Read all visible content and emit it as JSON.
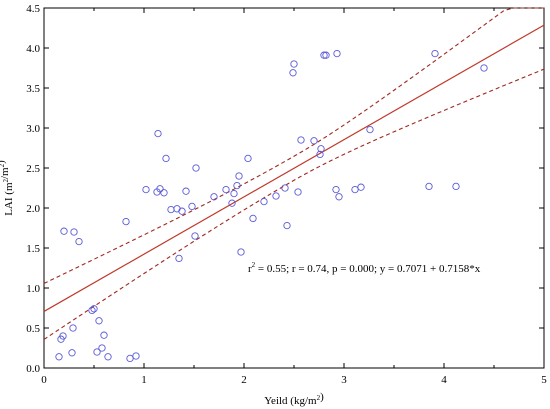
{
  "chart_data": {
    "type": "scatter",
    "xlabel": "Yeild (kg/m²)",
    "ylabel": "LAI (m²/m²)",
    "xlim": [
      0,
      5
    ],
    "ylim": [
      0,
      4.5
    ],
    "x_ticks": [
      "0",
      "1",
      "2",
      "3",
      "4",
      "5"
    ],
    "y_ticks": [
      "0.0",
      "0.5",
      "1.0",
      "1.5",
      "2.0",
      "2.5",
      "3.0",
      "3.5",
      "4.0",
      "4.5"
    ],
    "grid": false,
    "colors": {
      "points": "#5a5ad6",
      "fit": "#c0392b",
      "ci": "#a0281e"
    },
    "fit": {
      "intercept": 0.7071,
      "slope": 0.7158,
      "ci_delta_at_0": 0.35,
      "ci_delta_at_5": 0.55
    },
    "annotation": {
      "r2_prefix": "r",
      "r2_sup": "2",
      "rest": " = 0.55;  r = 0.74, p = 0.000;  y = 0.7071 + 0.7158*x"
    },
    "points": [
      [
        0.15,
        0.14
      ],
      [
        0.17,
        0.36
      ],
      [
        0.19,
        0.4
      ],
      [
        0.28,
        0.19
      ],
      [
        0.29,
        0.5
      ],
      [
        0.53,
        0.2
      ],
      [
        0.55,
        0.59
      ],
      [
        0.58,
        0.25
      ],
      [
        0.6,
        0.41
      ],
      [
        0.64,
        0.14
      ],
      [
        0.48,
        0.72
      ],
      [
        0.5,
        0.74
      ],
      [
        0.86,
        0.12
      ],
      [
        0.92,
        0.15
      ],
      [
        0.2,
        1.71
      ],
      [
        0.3,
        1.7
      ],
      [
        0.35,
        1.58
      ],
      [
        0.82,
        1.83
      ],
      [
        1.02,
        2.23
      ],
      [
        1.13,
        2.2
      ],
      [
        1.16,
        2.24
      ],
      [
        1.2,
        2.19
      ],
      [
        1.14,
        2.93
      ],
      [
        1.22,
        2.62
      ],
      [
        1.27,
        1.98
      ],
      [
        1.33,
        1.99
      ],
      [
        1.38,
        1.96
      ],
      [
        1.35,
        1.37
      ],
      [
        1.42,
        2.21
      ],
      [
        1.48,
        2.02
      ],
      [
        1.51,
        1.65
      ],
      [
        1.52,
        2.5
      ],
      [
        1.7,
        2.14
      ],
      [
        1.82,
        2.23
      ],
      [
        1.88,
        2.06
      ],
      [
        1.9,
        2.18
      ],
      [
        1.93,
        2.28
      ],
      [
        1.95,
        2.4
      ],
      [
        1.97,
        1.45
      ],
      [
        2.04,
        2.62
      ],
      [
        2.09,
        1.87
      ],
      [
        2.2,
        2.08
      ],
      [
        2.32,
        2.15
      ],
      [
        2.41,
        2.25
      ],
      [
        2.43,
        1.78
      ],
      [
        2.49,
        3.69
      ],
      [
        2.5,
        3.8
      ],
      [
        2.54,
        2.2
      ],
      [
        2.57,
        2.85
      ],
      [
        2.7,
        2.84
      ],
      [
        2.76,
        2.67
      ],
      [
        2.77,
        2.74
      ],
      [
        2.8,
        3.91
      ],
      [
        2.82,
        3.91
      ],
      [
        2.93,
        3.93
      ],
      [
        2.92,
        2.23
      ],
      [
        2.95,
        2.14
      ],
      [
        3.11,
        2.23
      ],
      [
        3.17,
        2.26
      ],
      [
        3.26,
        2.98
      ],
      [
        3.85,
        2.27
      ],
      [
        3.91,
        3.93
      ],
      [
        4.12,
        2.27
      ],
      [
        4.4,
        3.75
      ]
    ]
  }
}
